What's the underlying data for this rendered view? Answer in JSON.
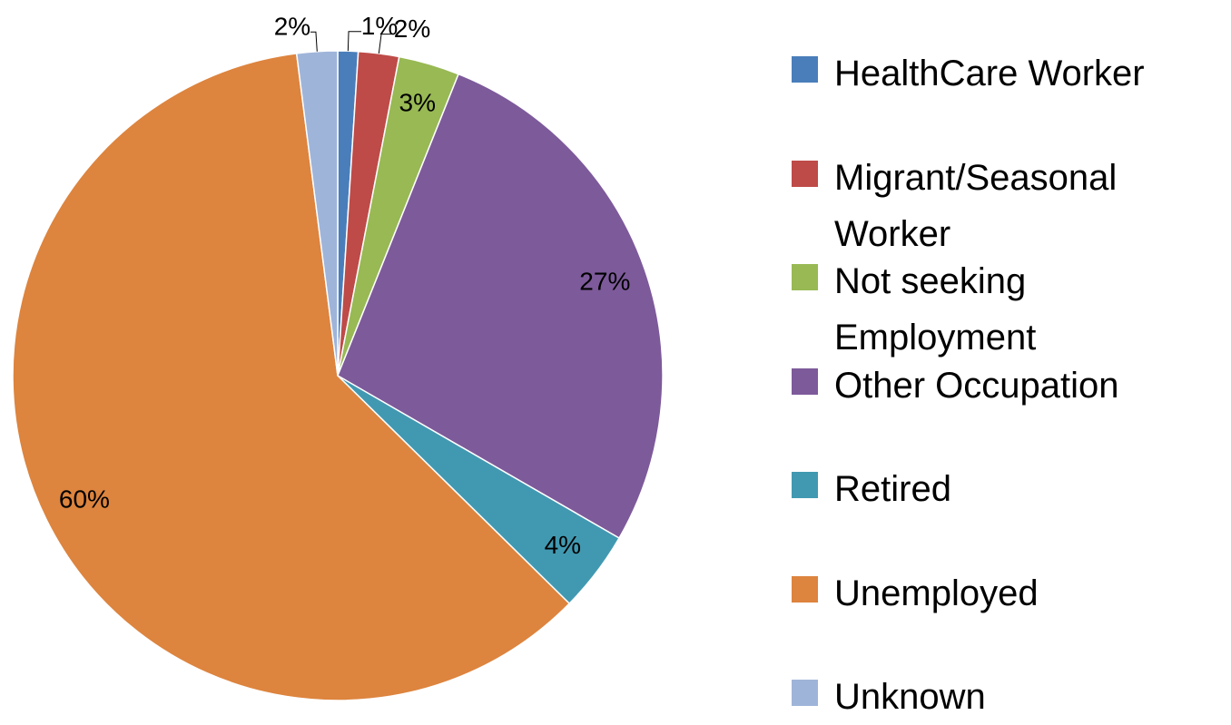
{
  "chart_data": {
    "type": "pie",
    "categories": [
      "HealthCare Worker",
      "Migrant/Seasonal Worker",
      "Not seeking Employment",
      "Other Occupation",
      "Retired",
      "Unemployed",
      "Unknown"
    ],
    "values": [
      1,
      2,
      3,
      27,
      4,
      60,
      2
    ],
    "value_labels": [
      "1%",
      "2%",
      "3%",
      "27%",
      "4%",
      "60%",
      "2%"
    ],
    "colors": [
      "#4a7ebb",
      "#be4b48",
      "#98b954",
      "#7d5a9a",
      "#4199b1",
      "#dd843e",
      "#9fb4d9"
    ],
    "legend": "right"
  }
}
